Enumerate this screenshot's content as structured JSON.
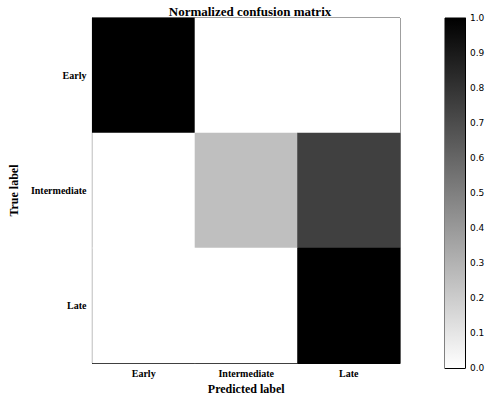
{
  "chart_data": {
    "type": "heatmap",
    "title": "Normalized confusion matrix",
    "x_label": "Predicted label",
    "y_label": "True label",
    "x_categories": [
      "Early",
      "Intermediate",
      "Late"
    ],
    "y_categories": [
      "Early",
      "Intermediate",
      "Late"
    ],
    "cells": [
      [
        1.0,
        0,
        0
      ],
      [
        0,
        0.25,
        0.75
      ],
      [
        0,
        0,
        1.0
      ]
    ],
    "colorbar": {
      "range": [
        0,
        1
      ],
      "ticks": [
        {
          "value": 0,
          "label": "0.0"
        },
        0.1,
        0.2,
        0.3,
        0.4,
        0.5,
        0.6,
        0.7,
        0.8,
        0.9,
        {
          "value": 1,
          "label": "1.0"
        }
      ]
    }
  }
}
